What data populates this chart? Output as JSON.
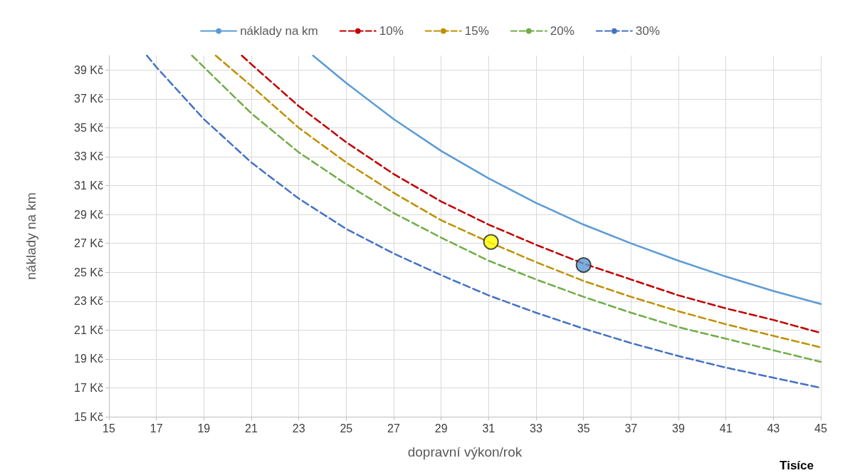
{
  "chart_data": {
    "type": "line",
    "xlabel": "dopravní výkon/rok",
    "ylabel": "náklady na km",
    "annotations": [
      "Tisíce"
    ],
    "xlim": [
      15,
      45
    ],
    "xticks": [
      15,
      17,
      19,
      21,
      23,
      25,
      27,
      29,
      31,
      33,
      35,
      37,
      39,
      41,
      43,
      45
    ],
    "ylim": [
      15,
      40
    ],
    "yticks": [
      {
        "value": 15,
        "label": "15 Kč"
      },
      {
        "value": 17,
        "label": "17 Kč"
      },
      {
        "value": 19,
        "label": "19 Kč"
      },
      {
        "value": 21,
        "label": "21 Kč"
      },
      {
        "value": 23,
        "label": "23 Kč"
      },
      {
        "value": 25,
        "label": "25 Kč"
      },
      {
        "value": 27,
        "label": "27 Kč"
      },
      {
        "value": 29,
        "label": "29 Kč"
      },
      {
        "value": 31,
        "label": "31 Kč"
      },
      {
        "value": 33,
        "label": "33 Kč"
      },
      {
        "value": 35,
        "label": "35 Kč"
      },
      {
        "value": 37,
        "label": "37 Kč"
      },
      {
        "value": 39,
        "label": "39 Kč"
      }
    ],
    "grid": true,
    "legend": "top",
    "marker": "none",
    "series": [
      {
        "name": "náklady na km",
        "color": "#5b9bd5",
        "line_style": "solid",
        "x": [
          23.6,
          25,
          27,
          29,
          31,
          33,
          35,
          37,
          39,
          41,
          43,
          45
        ],
        "values": [
          40,
          38.1,
          35.6,
          33.4,
          31.5,
          29.8,
          28.3,
          27.0,
          25.8,
          24.7,
          23.7,
          22.8
        ]
      },
      {
        "name": "10%",
        "color": "#c00000",
        "line_style": "dashed",
        "x": [
          20.6,
          21,
          23,
          25,
          27,
          29,
          31,
          33,
          35,
          37,
          39,
          41,
          43,
          45
        ],
        "values": [
          40,
          39.4,
          36.5,
          34.0,
          31.8,
          29.9,
          28.3,
          26.9,
          25.6,
          24.5,
          23.4,
          22.5,
          21.7,
          20.8
        ]
      },
      {
        "name": "15%",
        "color": "#bf9000",
        "line_style": "dashed",
        "x": [
          19.5,
          21,
          23,
          25,
          27,
          29,
          31,
          33,
          35,
          37,
          39,
          41,
          43,
          45
        ],
        "values": [
          40,
          37.9,
          35.0,
          32.6,
          30.5,
          28.6,
          27.1,
          25.7,
          24.4,
          23.3,
          22.3,
          21.4,
          20.6,
          19.8
        ]
      },
      {
        "name": "20%",
        "color": "#70ad47",
        "line_style": "dashed",
        "x": [
          18.5,
          19,
          21,
          23,
          25,
          27,
          29,
          31,
          33,
          35,
          37,
          39,
          41,
          43,
          45
        ],
        "values": [
          40,
          39.2,
          36.0,
          33.3,
          31.1,
          29.1,
          27.4,
          25.8,
          24.5,
          23.3,
          22.2,
          21.2,
          20.4,
          19.6,
          18.8
        ]
      },
      {
        "name": "30%",
        "color": "#4472c4",
        "line_style": "dashed",
        "x": [
          16.6,
          17,
          19,
          21,
          23,
          25,
          27,
          29,
          31,
          33,
          35,
          37,
          39,
          41,
          43,
          45
        ],
        "values": [
          40,
          39.2,
          35.6,
          32.6,
          30.1,
          28.0,
          26.3,
          24.8,
          23.4,
          22.2,
          21.1,
          20.1,
          19.2,
          18.4,
          17.7,
          17.0
        ]
      },
      {
        "type": "scatter",
        "marker": "circle",
        "x": [
          31.1,
          35.0
        ],
        "values": [
          27.1,
          25.5
        ],
        "colors": [
          "#ffff00",
          "#5b9bd5"
        ]
      }
    ]
  }
}
